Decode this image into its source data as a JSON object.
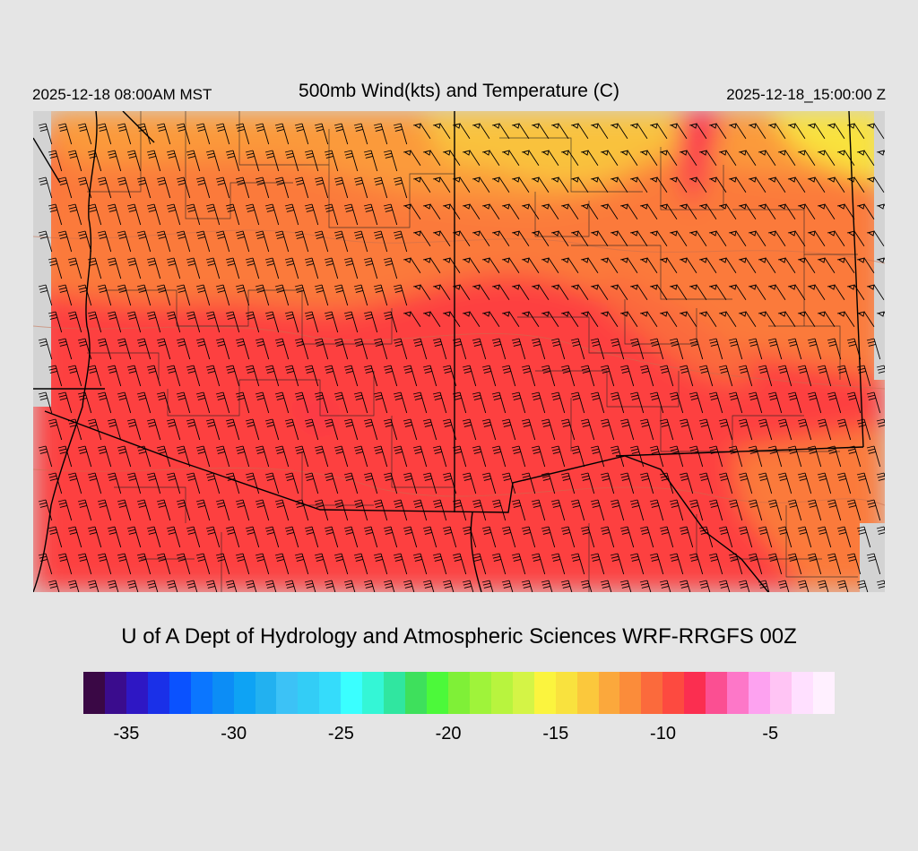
{
  "header": {
    "title": "500mb Wind(kts) and Temperature (C)",
    "local_time": "2025-12-18 08:00AM MST",
    "valid_time": "2025-12-18_15:00:00 Z"
  },
  "footer": {
    "credit": "U of A Dept of Hydrology and Atmospheric Sciences WRF-RRGFS 00Z"
  },
  "colorbar": {
    "colors": [
      "#3a0845",
      "#3a0c8d",
      "#2e17c4",
      "#1a30e8",
      "#0a52ff",
      "#0b76ff",
      "#0c8df6",
      "#0ea3f4",
      "#22b1f0",
      "#3cc2f6",
      "#33cdf6",
      "#35dcfb",
      "#3affff",
      "#34f6d6",
      "#30e6a0",
      "#3ee05c",
      "#4cf93a",
      "#7ff037",
      "#9ff33a",
      "#b8f43e",
      "#d4f446",
      "#fbf43e",
      "#f9e23e",
      "#fbc83c",
      "#fba83c",
      "#fb8c3a",
      "#fb6a3c",
      "#fd4a40",
      "#fb2e50",
      "#fb4f92",
      "#fd77c8",
      "#fda2f0",
      "#ffc4f4",
      "#ffe0ff",
      "#fff0ff"
    ],
    "tick_labels": [
      "-35",
      "-30",
      "-25",
      "-20",
      "-15",
      "-10",
      "-5"
    ],
    "tick_values": [
      -35,
      -30,
      -25,
      -20,
      -15,
      -10,
      -5
    ],
    "range": [
      -36,
      -1
    ]
  },
  "map_legend": {
    "field_colors": {
      "cold_north": "#f9c23c",
      "warm_mid": "#fb7a3a",
      "warmest_south": "#fd4040",
      "missing": "#d3d3d3"
    }
  }
}
